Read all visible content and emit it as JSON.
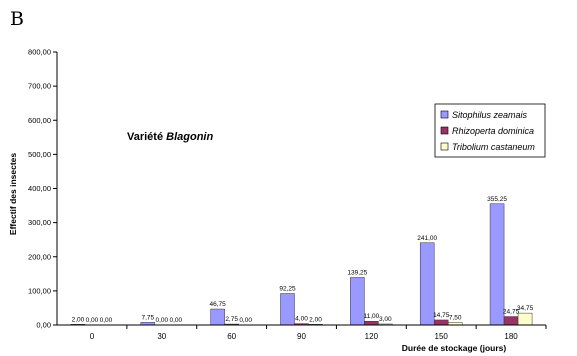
{
  "panel_label": "B",
  "chart_data": {
    "type": "bar",
    "categories": [
      "0",
      "30",
      "60",
      "90",
      "120",
      "150",
      "180"
    ],
    "series": [
      {
        "name": "Sitophilus zeamais",
        "color": "#9999ff",
        "values": [
          2.0,
          7.75,
          46.75,
          92.25,
          139.25,
          241.0,
          355.25
        ],
        "labels": [
          "2,00",
          "7,75",
          "46,75",
          "92,25",
          "139,25",
          "241,00",
          "355,25"
        ]
      },
      {
        "name": "Rhizoperta dominica",
        "color": "#993366",
        "values": [
          0.0,
          0.0,
          2.75,
          4.0,
          11.0,
          14.75,
          24.75
        ],
        "labels": [
          "0,00",
          "0,00",
          "2,75",
          "4,00",
          "11,00",
          "14,75",
          "24,75"
        ]
      },
      {
        "name": "Tribolium castaneum",
        "color": "#ffffcc",
        "values": [
          0.0,
          0.0,
          0.0,
          2.0,
          3.0,
          7.5,
          34.75
        ],
        "labels": [
          "0,00",
          "0,00",
          "0,00",
          "2,00",
          "3,00",
          "7,50",
          "34,75"
        ]
      }
    ],
    "xlabel": "Durée de stockage (jours)",
    "ylabel": "Effectif des insectes",
    "ylim": [
      0,
      800
    ],
    "yticks": [
      0,
      100,
      200,
      300,
      400,
      500,
      600,
      700,
      800
    ],
    "ytick_labels": [
      "0,00",
      "100,00",
      "200,00",
      "300,00",
      "400,00",
      "500,00",
      "600,00",
      "700,00",
      "800,00"
    ],
    "annotation": {
      "prefix": "Variété ",
      "name": "Blagonin"
    },
    "legend_position": "right",
    "grid": false
  }
}
